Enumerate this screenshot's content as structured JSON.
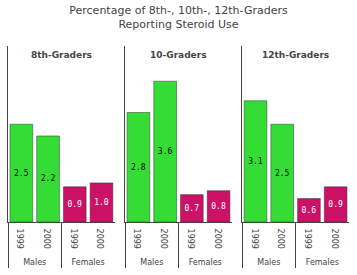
{
  "chart_data": {
    "type": "bar",
    "title": "Percentage of 8th-, 10th-, 12th-Graders\nReporting Steroid Use",
    "ylim": [
      0,
      4.5
    ],
    "yticks": [],
    "tick_labels": "x",
    "data_labels": true,
    "panels": [
      {
        "title": "8th-Graders",
        "categories": [
          "1999",
          "2000",
          "1999",
          "2000"
        ],
        "category_groups": [
          "Males",
          "Males",
          "Females",
          "Females"
        ],
        "values": [
          2.5,
          2.2,
          0.9,
          1.0
        ],
        "value_labels": [
          "2.5",
          "2.2",
          "0.9",
          "1.0"
        ],
        "colors": [
          "#33dd33",
          "#33dd33",
          "#cc1166",
          "#cc1166"
        ]
      },
      {
        "title": "10-Graders",
        "categories": [
          "1999",
          "2000",
          "1999",
          "2000"
        ],
        "category_groups": [
          "Males",
          "Males",
          "Females",
          "Females"
        ],
        "values": [
          2.8,
          3.6,
          0.7,
          0.8
        ],
        "value_labels": [
          "2.8",
          "3.6",
          "0.7",
          "0.8"
        ],
        "colors": [
          "#33dd33",
          "#33dd33",
          "#cc1166",
          "#cc1166"
        ]
      },
      {
        "title": "12th-Graders",
        "categories": [
          "1999",
          "2000",
          "1999",
          "2000"
        ],
        "category_groups": [
          "Males",
          "Males",
          "Females",
          "Females"
        ],
        "values": [
          3.1,
          2.5,
          0.6,
          0.9
        ],
        "value_labels": [
          "3.1",
          "2.5",
          "0.6",
          "0.9"
        ],
        "colors": [
          "#33dd33",
          "#33dd33",
          "#cc1166",
          "#cc1166"
        ]
      }
    ]
  }
}
